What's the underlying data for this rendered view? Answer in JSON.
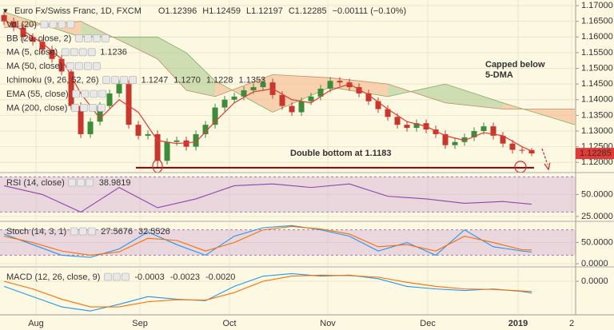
{
  "chart_data": [
    {
      "type": "candlestick",
      "title": "Euro Fx/Swiss Franc, 1D, FXCM",
      "ohlc": [
        "O1.12396",
        "H1.12459",
        "L1.12197",
        "C1.12285",
        "−0.00111 (−0.10%)"
      ],
      "indicators": [
        {
          "label": "Vol (20)",
          "muted": true
        },
        {
          "label": "BB (20, close, 2)",
          "muted": true
        },
        {
          "label": "MA (5, close)",
          "muted": false,
          "values": [
            "1.1236"
          ],
          "colors": [
            "#e53935"
          ]
        },
        {
          "label": "MA (50, close)",
          "muted": true
        },
        {
          "label": "Ichimoku (9, 26, 52, 26)",
          "muted": false,
          "values": [
            "1.1247",
            "1.1270",
            "1.1228",
            "1.1353"
          ],
          "colors": [
            "#1e63c8",
            "#8b1a1a",
            "#2e7d32",
            "#1b5e20"
          ]
        },
        {
          "label": "EMA (55, close)",
          "muted": true
        },
        {
          "label": "MA (200, close)",
          "muted": true
        }
      ],
      "x": [
        0,
        1,
        2,
        3,
        4,
        5,
        6,
        7,
        8,
        9,
        10,
        11,
        12,
        13,
        14,
        15,
        16,
        17,
        18,
        19,
        20,
        21,
        22,
        23,
        24,
        25,
        26,
        27,
        28,
        29,
        30,
        31,
        32,
        33,
        34,
        35,
        36,
        37,
        38,
        39,
        40,
        41,
        42,
        43,
        44,
        45,
        46,
        47,
        48,
        49,
        50,
        51,
        52,
        53,
        54,
        55
      ],
      "open": [
        1.167,
        1.165,
        1.163,
        1.16,
        1.1585,
        1.156,
        1.153,
        1.149,
        1.138,
        1.129,
        1.133,
        1.138,
        1.142,
        1.145,
        1.132,
        1.1285,
        1.129,
        1.1205,
        1.1265,
        1.127,
        1.125,
        1.129,
        1.132,
        1.1375,
        1.14,
        1.141,
        1.143,
        1.144,
        1.1455,
        1.1415,
        1.138,
        1.136,
        1.1395,
        1.141,
        1.1435,
        1.146,
        1.1455,
        1.144,
        1.142,
        1.1395,
        1.137,
        1.1345,
        1.132,
        1.131,
        1.1325,
        1.1305,
        1.129,
        1.1255,
        1.1265,
        1.128,
        1.13,
        1.1315,
        1.1285,
        1.126,
        1.124,
        1.12396
      ],
      "high": [
        1.1682,
        1.1662,
        1.1642,
        1.1612,
        1.1597,
        1.1572,
        1.1542,
        1.1502,
        1.1392,
        1.1342,
        1.1392,
        1.1432,
        1.1462,
        1.1462,
        1.1332,
        1.1302,
        1.1302,
        1.1277,
        1.1282,
        1.1282,
        1.1302,
        1.1332,
        1.1387,
        1.1412,
        1.1422,
        1.1442,
        1.1452,
        1.1467,
        1.1467,
        1.1427,
        1.1392,
        1.1407,
        1.1422,
        1.1447,
        1.1472,
        1.1472,
        1.1467,
        1.1452,
        1.1432,
        1.1407,
        1.1382,
        1.1357,
        1.1332,
        1.1337,
        1.1337,
        1.1317,
        1.1302,
        1.1277,
        1.1292,
        1.1312,
        1.1327,
        1.1327,
        1.1297,
        1.1272,
        1.1252,
        1.12459
      ],
      "low": [
        1.1638,
        1.1618,
        1.1588,
        1.1573,
        1.1548,
        1.1518,
        1.1478,
        1.1368,
        1.1278,
        1.1278,
        1.1318,
        1.1368,
        1.1408,
        1.1308,
        1.1273,
        1.1273,
        1.1183,
        1.1193,
        1.1253,
        1.1238,
        1.1238,
        1.1278,
        1.1308,
        1.1363,
        1.1388,
        1.1398,
        1.1418,
        1.1428,
        1.1403,
        1.1368,
        1.1348,
        1.1348,
        1.1383,
        1.1398,
        1.1423,
        1.1443,
        1.1428,
        1.1408,
        1.1383,
        1.1358,
        1.1333,
        1.1308,
        1.1298,
        1.1298,
        1.1293,
        1.1278,
        1.1243,
        1.1243,
        1.1253,
        1.1268,
        1.1288,
        1.1273,
        1.1248,
        1.1228,
        1.1228,
        1.12197
      ],
      "close": [
        1.165,
        1.163,
        1.16,
        1.1585,
        1.156,
        1.153,
        1.149,
        1.138,
        1.129,
        1.133,
        1.138,
        1.142,
        1.145,
        1.132,
        1.1285,
        1.129,
        1.1205,
        1.1265,
        1.127,
        1.125,
        1.129,
        1.132,
        1.1375,
        1.14,
        1.141,
        1.143,
        1.144,
        1.1455,
        1.1415,
        1.138,
        1.136,
        1.1395,
        1.141,
        1.1435,
        1.146,
        1.1455,
        1.144,
        1.142,
        1.1395,
        1.137,
        1.1345,
        1.132,
        1.131,
        1.1325,
        1.1305,
        1.129,
        1.1255,
        1.1265,
        1.128,
        1.13,
        1.1315,
        1.1285,
        1.126,
        1.124,
        1.12396,
        1.12285
      ],
      "up_color": "#3c8c3c",
      "down_color": "#c8372d",
      "overlays": [
        {
          "color": "#e53935",
          "x": [
            0,
            2,
            4,
            6,
            8,
            10,
            12,
            14,
            16,
            18,
            20,
            22,
            24,
            26,
            28,
            30,
            32,
            34,
            36,
            38,
            40,
            42,
            44,
            46,
            48,
            50,
            52,
            54,
            55
          ],
          "values": [
            1.1655,
            1.162,
            1.158,
            1.153,
            1.142,
            1.134,
            1.14,
            1.136,
            1.127,
            1.126,
            1.1265,
            1.133,
            1.139,
            1.1425,
            1.1435,
            1.14,
            1.139,
            1.143,
            1.145,
            1.1415,
            1.137,
            1.133,
            1.1315,
            1.1285,
            1.127,
            1.1295,
            1.1285,
            1.125,
            1.1236
          ]
        }
      ],
      "cloud": {
        "x": [
          0,
          8,
          16,
          19,
          22,
          28,
          34,
          40,
          46,
          52,
          59.5
        ],
        "span_a": [
          1.168,
          1.16,
          1.16,
          1.155,
          1.146,
          1.136,
          1.144,
          1.141,
          1.145,
          1.139,
          1.132
        ],
        "span_b": [
          1.163,
          1.165,
          1.153,
          1.143,
          1.141,
          1.148,
          1.147,
          1.145,
          1.139,
          1.137,
          1.137
        ],
        "up_color": "#a9c88a",
        "down_color": "#f4b183"
      },
      "support": 1.1183,
      "annotations": [
        "Capped below",
        "5-DMA",
        "Double bottom at 1.1183"
      ],
      "last_price_label": "1.12285",
      "xlim": [
        -0.42,
        59.58
      ],
      "xticks": [
        {
          "value": 3.33,
          "label": "Aug"
        },
        {
          "value": 14.17,
          "label": "Sep"
        },
        {
          "value": 23.5,
          "label": "Oct"
        },
        {
          "value": 33.75,
          "label": "Nov"
        },
        {
          "value": 44.17,
          "label": "Dec"
        },
        {
          "value": 53.58,
          "label": "2019"
        },
        {
          "value": 59.17,
          "label": "2"
        }
      ],
      "ylim": [
        1.117,
        1.1718
      ],
      "yticks": [
        {
          "value": 1.12,
          "label": "1.12000"
        },
        {
          "value": 1.125,
          "label": "1.12500"
        },
        {
          "value": 1.13,
          "label": "1.13000"
        },
        {
          "value": 1.135,
          "label": "1.13500"
        },
        {
          "value": 1.14,
          "label": "1.14000"
        },
        {
          "value": 1.145,
          "label": "1.14500"
        },
        {
          "value": 1.15,
          "label": "1.15000"
        },
        {
          "value": 1.155,
          "label": "1.15500"
        },
        {
          "value": 1.16,
          "label": "1.16000"
        },
        {
          "value": 1.165,
          "label": "1.16500"
        },
        {
          "value": 1.17,
          "label": "1.17000"
        }
      ],
      "grid": true
    },
    {
      "type": "line",
      "title": "RSI (14, close)",
      "x": [
        0,
        4,
        8,
        12,
        16,
        20,
        24,
        28,
        32,
        36,
        40,
        44,
        48,
        52,
        55
      ],
      "series": [
        {
          "color": "#8e44ad",
          "values": [
            60,
            50,
            30,
            58,
            35,
            45,
            60,
            62,
            58,
            62,
            48,
            45,
            40,
            42,
            38.9819
          ],
          "value_label": "38.9819"
        }
      ],
      "band": [
        30,
        70
      ],
      "band_color": "#c39bd3",
      "xlim": [
        -0.42,
        59.58
      ],
      "ylim": [
        20.4,
        73.1
      ],
      "yticks": [
        {
          "value": 25,
          "label": "25.0000"
        },
        {
          "value": 50,
          "label": "50.0000"
        }
      ],
      "grid": true
    },
    {
      "type": "line",
      "title": "Stoch (14, 3, 1)",
      "x": [
        0,
        3,
        6,
        9,
        12,
        15,
        18,
        21,
        24,
        27,
        30,
        33,
        36,
        39,
        42,
        45,
        48,
        51,
        54,
        55
      ],
      "series": [
        {
          "color": "#2196f3",
          "values": [
            70,
            45,
            20,
            15,
            35,
            75,
            45,
            20,
            65,
            85,
            90,
            80,
            65,
            30,
            50,
            20,
            80,
            40,
            30,
            27.5676
          ],
          "value_label": "27.5676"
        },
        {
          "color": "#ff6d00",
          "values": [
            65,
            50,
            30,
            20,
            28,
            60,
            55,
            30,
            50,
            80,
            88,
            82,
            70,
            40,
            45,
            30,
            65,
            50,
            33,
            32.5526
          ],
          "value_label": "32.5526"
        }
      ],
      "band": [
        20,
        80
      ],
      "band_color": "#c39bd3",
      "xlim": [
        -0.42,
        59.58
      ],
      "ylim": [
        -5.6,
        96.3
      ],
      "yticks": [
        {
          "value": 0,
          "label": "0.0000"
        },
        {
          "value": 50,
          "label": "50.0000"
        }
      ],
      "grid": true
    },
    {
      "type": "line",
      "title": "MACD (12, 26, close, 9)",
      "histogram_label": "-0.0003",
      "histogram_color": "#e53935",
      "x": [
        0,
        3,
        6,
        9,
        12,
        15,
        18,
        21,
        24,
        27,
        30,
        33,
        36,
        39,
        42,
        45,
        48,
        51,
        54,
        55
      ],
      "series": [
        {
          "color": "#2196f3",
          "values": [
            -0.001,
            -0.003,
            -0.005,
            -0.0058,
            -0.0045,
            -0.003,
            -0.0035,
            -0.0038,
            -0.001,
            0.001,
            0.0015,
            0.001,
            0.0012,
            0.0005,
            -0.001,
            -0.0015,
            -0.0018,
            -0.0015,
            -0.002,
            -0.0023
          ],
          "value_label": "-0.0023"
        },
        {
          "color": "#ff6d00",
          "values": [
            0.0,
            -0.0015,
            -0.0035,
            -0.005,
            -0.005,
            -0.004,
            -0.0036,
            -0.0037,
            -0.0022,
            0.0,
            0.001,
            0.0012,
            0.0011,
            0.0008,
            -0.0002,
            -0.001,
            -0.0015,
            -0.0016,
            -0.0019,
            -0.002
          ],
          "value_label": "-0.0020"
        }
      ],
      "xlim": [
        -0.42,
        59.58
      ],
      "ylim": [
        -0.0064,
        0.0025
      ],
      "yticks": [
        {
          "value": 0,
          "label": "0.0000"
        }
      ],
      "grid": true
    }
  ]
}
